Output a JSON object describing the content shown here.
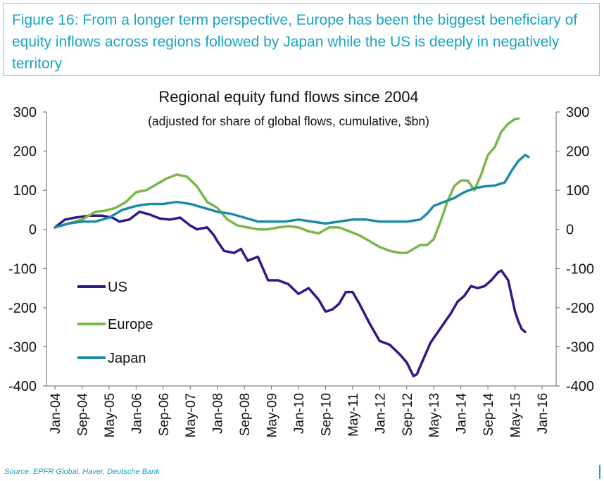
{
  "caption": "Figure 16: From a longer term perspective, Europe has been the biggest beneficiary of equity inflows across regions followed by Japan while the US is deeply in negatively territory",
  "source": "Source: EPFR Global, Haver, Deutsche Bank",
  "chart_data": {
    "type": "line",
    "title": "Regional equity fund flows  since 2004",
    "subtitle": "(adjusted for share of global flows, cumulative, $bn)",
    "xlabel": "",
    "ylabel": "",
    "ylim": [
      -400,
      300
    ],
    "yticks": [
      "300",
      "200",
      "100",
      "0",
      "-100",
      "-200",
      "-300",
      "-400"
    ],
    "ytick_values": [
      300,
      200,
      100,
      0,
      -100,
      -200,
      -300,
      -400
    ],
    "xlim": [
      0,
      144
    ],
    "xticks": [
      "Jan-04",
      "Sep-04",
      "May-05",
      "Jan-06",
      "Sep-06",
      "May-07",
      "Jan-08",
      "Sep-08",
      "May-09",
      "Jan-10",
      "Sep-10",
      "May-11",
      "Jan-12",
      "Sep-12",
      "May-13",
      "Jan-14",
      "Sep-14",
      "May-15",
      "Jan-16"
    ],
    "xtick_values": [
      0,
      8,
      16,
      24,
      32,
      40,
      48,
      56,
      64,
      72,
      80,
      88,
      96,
      104,
      112,
      120,
      128,
      136,
      144
    ],
    "grid": false,
    "legend": "left",
    "series": [
      {
        "name": "US",
        "color": "#2e1a87",
        "points": [
          [
            0,
            5
          ],
          [
            3,
            25
          ],
          [
            6,
            30
          ],
          [
            10,
            35
          ],
          [
            14,
            35
          ],
          [
            17,
            30
          ],
          [
            19,
            20
          ],
          [
            22,
            25
          ],
          [
            25,
            45
          ],
          [
            28,
            38
          ],
          [
            31,
            28
          ],
          [
            34,
            25
          ],
          [
            37,
            30
          ],
          [
            40,
            10
          ],
          [
            42,
            0
          ],
          [
            45,
            5
          ],
          [
            47,
            -15
          ],
          [
            48,
            -30
          ],
          [
            50,
            -55
          ],
          [
            53,
            -60
          ],
          [
            55,
            -50
          ],
          [
            57,
            -80
          ],
          [
            60,
            -70
          ],
          [
            63,
            -130
          ],
          [
            66,
            -130
          ],
          [
            69,
            -140
          ],
          [
            72,
            -165
          ],
          [
            75,
            -150
          ],
          [
            78,
            -180
          ],
          [
            80,
            -210
          ],
          [
            82,
            -205
          ],
          [
            84,
            -190
          ],
          [
            86,
            -160
          ],
          [
            88,
            -160
          ],
          [
            90,
            -190
          ],
          [
            93,
            -240
          ],
          [
            96,
            -285
          ],
          [
            99,
            -295
          ],
          [
            102,
            -320
          ],
          [
            104,
            -340
          ],
          [
            106,
            -375
          ],
          [
            107,
            -370
          ],
          [
            109,
            -330
          ],
          [
            111,
            -290
          ],
          [
            113,
            -265
          ],
          [
            115,
            -240
          ],
          [
            117,
            -215
          ],
          [
            119,
            -185
          ],
          [
            121,
            -170
          ],
          [
            123,
            -145
          ],
          [
            125,
            -150
          ],
          [
            127,
            -145
          ],
          [
            129,
            -130
          ],
          [
            131,
            -110
          ],
          [
            132,
            -105
          ],
          [
            134,
            -130
          ],
          [
            135,
            -170
          ],
          [
            136,
            -210
          ],
          [
            137,
            -235
          ],
          [
            138,
            -255
          ],
          [
            139,
            -262
          ]
        ]
      },
      {
        "name": "Europe",
        "color": "#7ab648",
        "points": [
          [
            0,
            5
          ],
          [
            4,
            15
          ],
          [
            8,
            25
          ],
          [
            12,
            45
          ],
          [
            15,
            48
          ],
          [
            18,
            55
          ],
          [
            21,
            70
          ],
          [
            24,
            95
          ],
          [
            27,
            100
          ],
          [
            30,
            115
          ],
          [
            33,
            130
          ],
          [
            36,
            140
          ],
          [
            39,
            135
          ],
          [
            42,
            110
          ],
          [
            45,
            70
          ],
          [
            48,
            55
          ],
          [
            51,
            25
          ],
          [
            54,
            10
          ],
          [
            57,
            5
          ],
          [
            60,
            0
          ],
          [
            63,
            0
          ],
          [
            66,
            5
          ],
          [
            69,
            8
          ],
          [
            72,
            5
          ],
          [
            75,
            -5
          ],
          [
            78,
            -10
          ],
          [
            81,
            5
          ],
          [
            84,
            5
          ],
          [
            87,
            -5
          ],
          [
            90,
            -15
          ],
          [
            93,
            -30
          ],
          [
            96,
            -45
          ],
          [
            99,
            -55
          ],
          [
            102,
            -60
          ],
          [
            104,
            -60
          ],
          [
            106,
            -50
          ],
          [
            108,
            -40
          ],
          [
            110,
            -40
          ],
          [
            112,
            -25
          ],
          [
            114,
            20
          ],
          [
            116,
            70
          ],
          [
            118,
            110
          ],
          [
            120,
            125
          ],
          [
            122,
            125
          ],
          [
            124,
            100
          ],
          [
            126,
            140
          ],
          [
            128,
            190
          ],
          [
            130,
            210
          ],
          [
            132,
            250
          ],
          [
            134,
            270
          ],
          [
            136,
            282
          ],
          [
            137,
            283
          ]
        ]
      },
      {
        "name": "Japan",
        "color": "#1f8aa6",
        "points": [
          [
            0,
            5
          ],
          [
            4,
            15
          ],
          [
            8,
            20
          ],
          [
            12,
            20
          ],
          [
            16,
            30
          ],
          [
            20,
            50
          ],
          [
            24,
            60
          ],
          [
            28,
            65
          ],
          [
            32,
            65
          ],
          [
            36,
            70
          ],
          [
            40,
            65
          ],
          [
            44,
            55
          ],
          [
            48,
            45
          ],
          [
            52,
            40
          ],
          [
            56,
            30
          ],
          [
            60,
            20
          ],
          [
            64,
            20
          ],
          [
            68,
            20
          ],
          [
            72,
            25
          ],
          [
            76,
            20
          ],
          [
            80,
            15
          ],
          [
            84,
            20
          ],
          [
            88,
            25
          ],
          [
            92,
            25
          ],
          [
            96,
            20
          ],
          [
            100,
            20
          ],
          [
            104,
            20
          ],
          [
            108,
            25
          ],
          [
            110,
            40
          ],
          [
            112,
            60
          ],
          [
            115,
            70
          ],
          [
            118,
            80
          ],
          [
            121,
            95
          ],
          [
            124,
            105
          ],
          [
            127,
            110
          ],
          [
            130,
            112
          ],
          [
            133,
            120
          ],
          [
            135,
            150
          ],
          [
            137,
            175
          ],
          [
            139,
            190
          ],
          [
            140,
            185
          ]
        ]
      }
    ]
  }
}
